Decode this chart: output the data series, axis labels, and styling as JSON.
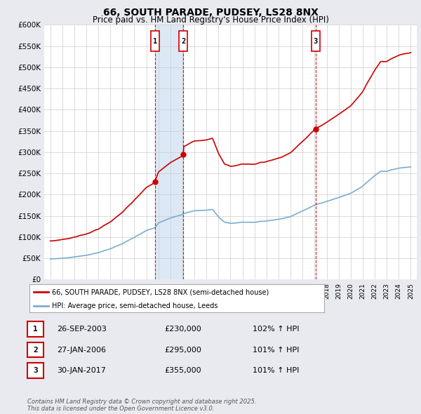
{
  "title": "66, SOUTH PARADE, PUDSEY, LS28 8NX",
  "subtitle": "Price paid vs. HM Land Registry's House Price Index (HPI)",
  "legend_line1": "66, SOUTH PARADE, PUDSEY, LS28 8NX (semi-detached house)",
  "legend_line2": "HPI: Average price, semi-detached house, Leeds",
  "footer": "Contains HM Land Registry data © Crown copyright and database right 2025.\nThis data is licensed under the Open Government Licence v3.0.",
  "transactions": [
    {
      "num": 1,
      "date": "26-SEP-2003",
      "price": "£230,000",
      "hpi": "102% ↑ HPI",
      "year": 2003.73
    },
    {
      "num": 2,
      "date": "27-JAN-2006",
      "price": "£295,000",
      "hpi": "101% ↑ HPI",
      "year": 2006.07
    },
    {
      "num": 3,
      "date": "30-JAN-2017",
      "price": "£355,000",
      "hpi": "101% ↑ HPI",
      "year": 2017.07
    }
  ],
  "red_color": "#cc0000",
  "blue_color": "#7aadcf",
  "shade_color": "#dce8f5",
  "bg_color": "#e8eaf0",
  "plot_bg": "#ffffff",
  "grid_color": "#cccccc",
  "ylim_min": 0,
  "ylim_max": 600000,
  "ytick_step": 50000,
  "xlim_start": 1994.5,
  "xlim_end": 2025.5,
  "xtick_start": 1995,
  "xtick_end": 2025
}
